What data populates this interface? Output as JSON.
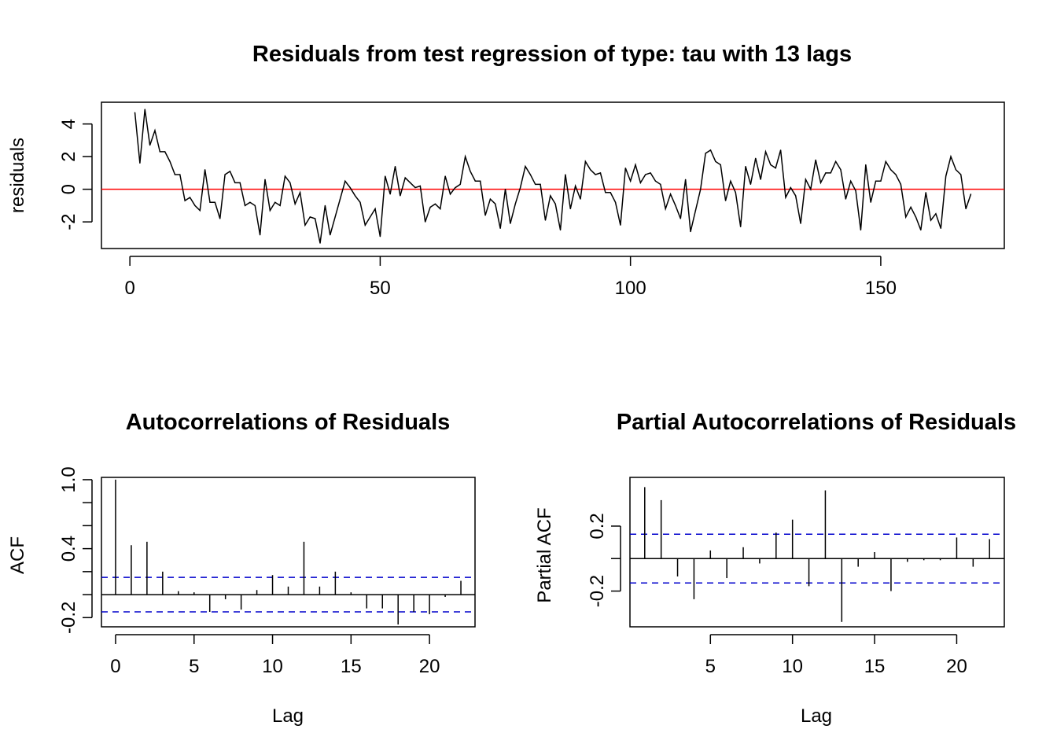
{
  "chart_data": [
    {
      "type": "line",
      "title": "Residuals from test regression of type: tau  with 13 lags",
      "xlabel": "",
      "ylabel": "residuals",
      "xlim": [
        1,
        168
      ],
      "ylim": [
        -3.3,
        5.0
      ],
      "xticks": [
        "0",
        "50",
        "100",
        "150"
      ],
      "yticks": [
        "-2",
        "0",
        "2",
        "4"
      ],
      "reference_line": {
        "y": 0,
        "color": "#ff0000"
      },
      "line_color": "#000000",
      "grid": false,
      "x": [
        1,
        2,
        3,
        4,
        5,
        6,
        7,
        8,
        9,
        10,
        11,
        12,
        13,
        14,
        15,
        16,
        17,
        18,
        19,
        20,
        21,
        22,
        23,
        24,
        25,
        26,
        27,
        28,
        29,
        30,
        31,
        32,
        33,
        34,
        35,
        36,
        37,
        38,
        39,
        40,
        41,
        42,
        43,
        44,
        45,
        46,
        47,
        48,
        49,
        50,
        51,
        52,
        53,
        54,
        55,
        56,
        57,
        58,
        59,
        60,
        61,
        62,
        63,
        64,
        65,
        66,
        67,
        68,
        69,
        70,
        71,
        72,
        73,
        74,
        75,
        76,
        77,
        78,
        79,
        80,
        81,
        82,
        83,
        84,
        85,
        86,
        87,
        88,
        89,
        90,
        91,
        92,
        93,
        94,
        95,
        96,
        97,
        98,
        99,
        100,
        101,
        102,
        103,
        104,
        105,
        106,
        107,
        108,
        109,
        110,
        111,
        112,
        113,
        114,
        115,
        116,
        117,
        118,
        119,
        120,
        121,
        122,
        123,
        124,
        125,
        126,
        127,
        128,
        129,
        130,
        131,
        132,
        133,
        134,
        135,
        136,
        137,
        138,
        139,
        140,
        141,
        142,
        143,
        144,
        145,
        146,
        147,
        148,
        149,
        150,
        151,
        152,
        153,
        154,
        155,
        156,
        157,
        158,
        159,
        160,
        161,
        162,
        163,
        164,
        165,
        166,
        167,
        168
      ],
      "y": [
        4.7,
        1.6,
        4.9,
        2.7,
        3.6,
        2.3,
        2.3,
        1.7,
        0.9,
        0.9,
        -0.7,
        -0.5,
        -1.0,
        -1.3,
        1.2,
        -0.8,
        -0.8,
        -1.8,
        0.9,
        1.1,
        0.4,
        0.4,
        -1.0,
        -0.8,
        -1.0,
        -2.8,
        0.6,
        -1.3,
        -0.8,
        -1.0,
        0.8,
        0.4,
        -0.9,
        -0.2,
        -2.2,
        -1.7,
        -1.8,
        -3.3,
        -1.0,
        -2.8,
        -1.7,
        -0.6,
        0.5,
        0.1,
        -0.4,
        -0.8,
        -2.2,
        -1.7,
        -1.2,
        -2.9,
        0.8,
        -0.3,
        1.4,
        -0.4,
        0.7,
        0.4,
        0.1,
        0.2,
        -2.0,
        -1.1,
        -0.9,
        -1.2,
        0.8,
        -0.3,
        0.1,
        0.3,
        2.0,
        1.1,
        0.5,
        0.5,
        -1.6,
        -0.6,
        -0.9,
        -2.4,
        0.0,
        -2.1,
        -0.9,
        0.1,
        1.4,
        0.9,
        0.3,
        0.3,
        -1.9,
        -0.4,
        -0.9,
        -2.5,
        0.9,
        -1.2,
        0.2,
        -0.6,
        1.7,
        1.2,
        0.9,
        1.0,
        -0.2,
        -0.2,
        -0.8,
        -2.2,
        1.3,
        0.5,
        1.5,
        0.4,
        0.9,
        1.0,
        0.5,
        0.3,
        -1.2,
        -0.3,
        -1.0,
        -1.8,
        0.6,
        -2.6,
        -1.3,
        0.0,
        2.2,
        2.4,
        1.7,
        1.5,
        -0.7,
        0.5,
        -0.2,
        -2.3,
        1.4,
        0.3,
        1.9,
        0.6,
        2.3,
        1.5,
        1.3,
        2.4,
        -0.5,
        0.1,
        -0.4,
        -2.1,
        0.6,
        0.0,
        1.8,
        0.4,
        1.0,
        1.0,
        1.7,
        1.2,
        -0.6,
        0.5,
        -0.1,
        -2.5,
        1.5,
        -0.8,
        0.5,
        0.5,
        1.7,
        1.2,
        0.9,
        0.3,
        -1.7,
        -1.1,
        -1.7,
        -2.5,
        -0.2,
        -1.9,
        -1.5,
        -2.4,
        0.8,
        2.0,
        1.2,
        0.9,
        -1.2,
        -0.3
      ]
    },
    {
      "type": "bar",
      "title": "Autocorrelations of Residuals",
      "xlabel": "Lag",
      "ylabel": "ACF",
      "xlim": [
        -0.9,
        22.9
      ],
      "ylim": [
        -0.28,
        1.02
      ],
      "xticks": [
        "0",
        "5",
        "10",
        "15",
        "20"
      ],
      "yticks": [
        "-0.2",
        "0.4",
        "1.0"
      ],
      "confidence_bound": 0.15,
      "bound_color": "#0000cc",
      "x": [
        0,
        1,
        2,
        3,
        4,
        5,
        6,
        7,
        8,
        9,
        10,
        11,
        12,
        13,
        14,
        15,
        16,
        17,
        18,
        19,
        20,
        21,
        22
      ],
      "values": [
        1.0,
        0.43,
        0.46,
        0.2,
        0.03,
        0.02,
        -0.15,
        -0.04,
        -0.13,
        0.04,
        0.17,
        0.07,
        0.46,
        0.07,
        0.2,
        0.02,
        -0.12,
        -0.12,
        -0.26,
        -0.15,
        -0.17,
        -0.02,
        0.12
      ]
    },
    {
      "type": "bar",
      "title": "Partial Autocorrelations of Residuals",
      "xlabel": "Lag",
      "ylabel": "Partial ACF",
      "xlim": [
        0.1,
        22.9
      ],
      "ylim": [
        -0.42,
        0.5
      ],
      "xticks": [
        "5",
        "10",
        "15",
        "20"
      ],
      "yticks": [
        "-0.2",
        "0.2"
      ],
      "confidence_bound": 0.15,
      "bound_color": "#0000cc",
      "x": [
        1,
        2,
        3,
        4,
        5,
        6,
        7,
        8,
        9,
        10,
        11,
        12,
        13,
        14,
        15,
        16,
        17,
        18,
        19,
        20,
        21,
        22
      ],
      "values": [
        0.44,
        0.36,
        -0.11,
        -0.25,
        0.05,
        -0.12,
        0.07,
        -0.03,
        0.16,
        0.24,
        -0.17,
        0.42,
        -0.39,
        -0.05,
        0.04,
        -0.2,
        -0.02,
        -0.01,
        -0.01,
        0.13,
        -0.05,
        0.12
      ]
    }
  ]
}
